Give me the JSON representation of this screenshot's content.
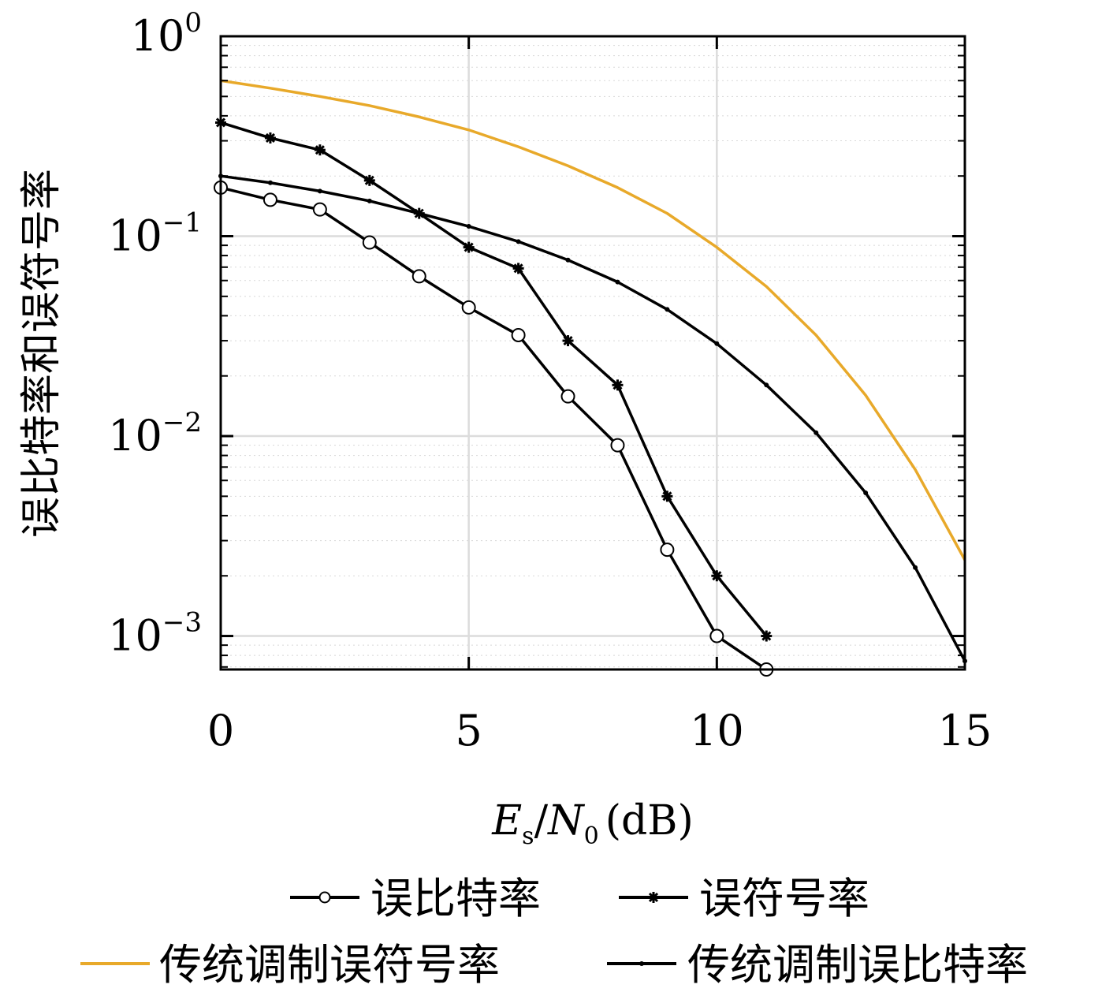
{
  "chart_data": {
    "type": "line",
    "xlabel": {
      "E": "E",
      "sub_s": "s",
      "slash": "/",
      "N": "N",
      "sub_0": "0",
      "unit": "(dB)"
    },
    "ylabel": "误比特率和误符号率",
    "xlim": [
      0,
      15
    ],
    "ylim": [
      0.00068,
      1
    ],
    "yscale": "log",
    "grid": true,
    "legend_position": "bottom",
    "x_ticks": [
      "0",
      "5",
      "10",
      "15"
    ],
    "y_ticks": [
      {
        "base": "10",
        "exp": "0",
        "value": 1
      },
      {
        "base": "10",
        "exp": "−1",
        "value": 0.1
      },
      {
        "base": "10",
        "exp": "−2",
        "value": 0.01
      },
      {
        "base": "10",
        "exp": "−3",
        "value": 0.001
      }
    ],
    "series": [
      {
        "name": "误比特率",
        "color": "#000000",
        "marker": "circle",
        "x": [
          0,
          1,
          2,
          3,
          4,
          5,
          6,
          7,
          8,
          9,
          10,
          11
        ],
        "y": [
          0.175,
          0.152,
          0.136,
          0.093,
          0.063,
          0.044,
          0.032,
          0.0158,
          0.009,
          0.0027,
          0.001,
          0.00068
        ]
      },
      {
        "name": "误符号率",
        "color": "#000000",
        "marker": "star",
        "x": [
          0,
          1,
          2,
          3,
          4,
          5,
          6,
          7,
          8,
          9,
          10,
          11
        ],
        "y": [
          0.37,
          0.31,
          0.27,
          0.19,
          0.13,
          0.088,
          0.069,
          0.03,
          0.018,
          0.005,
          0.002,
          0.001
        ]
      },
      {
        "name": "传统调制误符号率",
        "color": "#E8A92A",
        "marker": "none",
        "x": [
          0,
          1,
          2,
          3,
          4,
          5,
          6,
          7,
          8,
          9,
          10,
          11,
          12,
          13,
          14,
          15
        ],
        "y": [
          0.6,
          0.55,
          0.5,
          0.45,
          0.395,
          0.34,
          0.28,
          0.225,
          0.175,
          0.13,
          0.088,
          0.056,
          0.032,
          0.016,
          0.0068,
          0.0024
        ]
      },
      {
        "name": "传统调制误比特率",
        "color": "#000000",
        "marker": "dot",
        "x": [
          0,
          1,
          2,
          3,
          4,
          5,
          6,
          7,
          8,
          9,
          10,
          11,
          12,
          13,
          14,
          15
        ],
        "y": [
          0.2,
          0.185,
          0.168,
          0.15,
          0.13,
          0.112,
          0.094,
          0.076,
          0.059,
          0.043,
          0.029,
          0.018,
          0.0104,
          0.0052,
          0.0022,
          0.00075
        ]
      }
    ]
  }
}
